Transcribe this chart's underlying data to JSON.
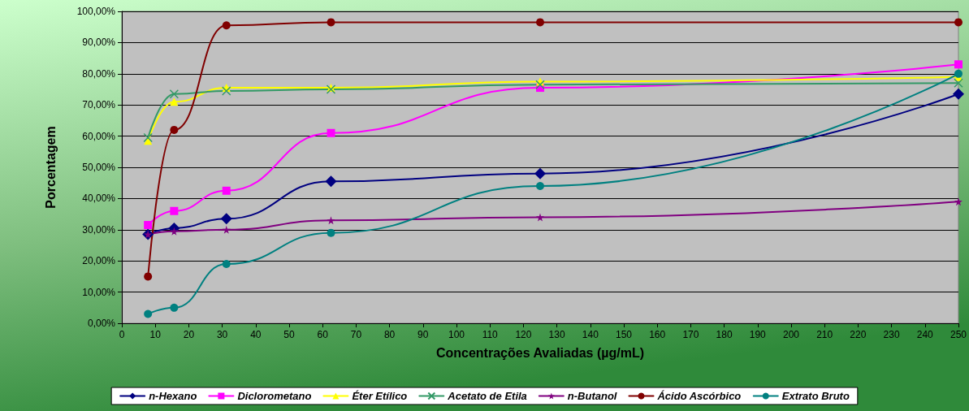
{
  "chart_data": {
    "type": "line",
    "xlabel": "Concentrações Avaliadas (µg/mL)",
    "ylabel": "Porcentagem",
    "xlim": [
      0,
      250
    ],
    "xticks": [
      0,
      10,
      20,
      30,
      40,
      50,
      60,
      70,
      80,
      90,
      100,
      110,
      120,
      130,
      140,
      150,
      160,
      170,
      180,
      190,
      200,
      210,
      220,
      230,
      240,
      250
    ],
    "ylim": [
      0,
      100
    ],
    "yticks": [
      {
        "value": 0,
        "label": "0,00%"
      },
      {
        "value": 10,
        "label": "10,00%"
      },
      {
        "value": 20,
        "label": "20,00%"
      },
      {
        "value": 30,
        "label": "30,00%"
      },
      {
        "value": 40,
        "label": "40,00%"
      },
      {
        "value": 50,
        "label": "50,00%"
      },
      {
        "value": 60,
        "label": "60,00%"
      },
      {
        "value": 70,
        "label": "70,00%"
      },
      {
        "value": 80,
        "label": "80,00%"
      },
      {
        "value": 90,
        "label": "90,00%"
      },
      {
        "value": 100,
        "label": "100,00%"
      }
    ],
    "grid": "y",
    "legend": "bottom",
    "x": [
      7.8125,
      15.625,
      31.25,
      62.5,
      125,
      250
    ],
    "series": [
      {
        "name": "n-Hexano",
        "color": "#000080",
        "marker": "diamond",
        "values": [
          28.5,
          30.5,
          33.5,
          45.5,
          48,
          73.5
        ]
      },
      {
        "name": "Diclorometano",
        "color": "#ff00ff",
        "marker": "square",
        "values": [
          31.5,
          36,
          42.5,
          61,
          75.5,
          83
        ]
      },
      {
        "name": "Éter Etílico",
        "color": "#ffff00",
        "marker": "triangle",
        "values": [
          58.5,
          71,
          75.5,
          75.5,
          77.5,
          79
        ]
      },
      {
        "name": "Acetato de Etila",
        "color": "#339966",
        "marker": "cross",
        "values": [
          59.5,
          73.5,
          74.5,
          75,
          76.5,
          77
        ]
      },
      {
        "name": "n-Butanol",
        "color": "#800080",
        "marker": "star",
        "values": [
          28.5,
          29.5,
          30,
          33,
          34,
          39
        ]
      },
      {
        "name": "Ácido Ascórbico",
        "color": "#800000",
        "marker": "circle",
        "values": [
          15,
          62,
          95.5,
          96.5,
          96.5,
          96.5
        ]
      },
      {
        "name": "Extrato Bruto",
        "color": "#008080",
        "marker": "circle",
        "values": [
          3,
          5,
          19,
          29,
          44,
          80
        ]
      }
    ]
  }
}
